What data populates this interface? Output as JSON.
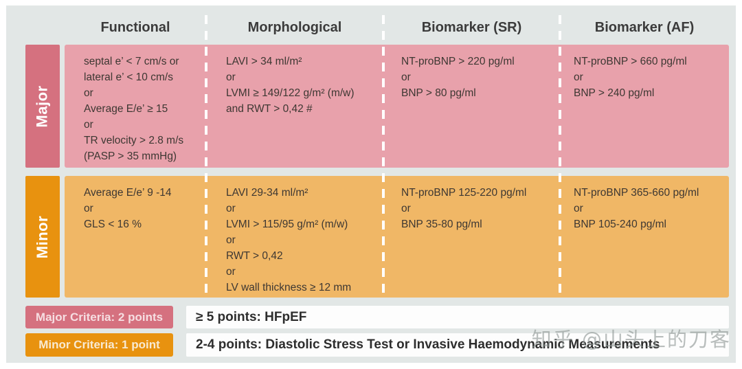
{
  "table": {
    "column_headers": [
      "Functional",
      "Morphological",
      "Biomarker (SR)",
      "Biomarker (AF)"
    ],
    "rows": [
      {
        "label": "Major",
        "points_value": "2 points",
        "cells": {
          "functional": "septal e’ < 7 cm/s or\nlateral e’ < 10 cm/s\nor\nAverage E/e’ ≥ 15\nor\nTR velocity > 2.8 m/s\n(PASP > 35 mmHg)",
          "morphological": "LAVI > 34 ml/m²\nor\nLVMI ≥ 149/122 g/m² (m/w)\nand RWT > 0,42 #",
          "biomarker_sr": "NT-proBNP > 220 pg/ml\nor\nBNP > 80 pg/ml",
          "biomarker_af": "NT-proBNP > 660 pg/ml\nor\nBNP > 240 pg/ml"
        }
      },
      {
        "label": "Minor",
        "points_value": "1 point",
        "cells": {
          "functional": "Average E/e’ 9 -14\nor\nGLS < 16 %",
          "morphological": "LAVI 29-34 ml/m²\nor\nLVMI > 115/95 g/m² (m/w)\nor\nRWT > 0,42\nor\nLV wall thickness ≥ 12 mm",
          "biomarker_sr": "NT-proBNP 125-220 pg/ml\nor\nBNP 35-80 pg/ml",
          "biomarker_af": "NT-proBNP 365-660 pg/ml\nor\nBNP 105-240 pg/ml"
        }
      }
    ]
  },
  "scoring": {
    "major_badge": "Major Criteria: 2 points",
    "minor_badge": "Minor Criteria: 1 point",
    "rule_high": "≥ 5 points: HFpEF",
    "rule_mid": "2-4 points: Diastolic Stress Test or Invasive Haemodynamic Measurements"
  },
  "watermark": "知乎 @山头上的刀客",
  "colors": {
    "major": "#d5717f",
    "major_light": "#e8a1ab",
    "minor": "#e8920f",
    "minor_light": "#f0b766",
    "panel_bg": "#e2e7e6",
    "text": "#3d3732"
  }
}
